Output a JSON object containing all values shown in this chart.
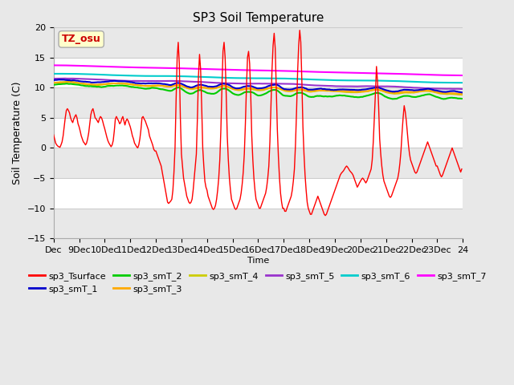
{
  "title": "SP3 Soil Temperature",
  "xlabel": "Time",
  "ylabel": "Soil Temperature (C)",
  "ylim": [
    -15,
    20
  ],
  "xlim": [
    0,
    384
  ],
  "xtick_labels": [
    "Dec",
    "9Dec",
    "10Dec",
    "11Dec",
    "12Dec",
    "13Dec",
    "14Dec",
    "15Dec",
    "16Dec",
    "17Dec",
    "18Dec",
    "19Dec",
    "20Dec",
    "21Dec",
    "22Dec",
    "23Dec",
    "24"
  ],
  "annotation_text": "TZ_osu",
  "annotation_color": "#cc0000",
  "annotation_bg": "#ffffcc",
  "annotation_border": "#aaaaaa",
  "legend_items": [
    {
      "label": "sp3_Tsurface",
      "color": "#ff0000"
    },
    {
      "label": "sp3_smT_1",
      "color": "#0000cc"
    },
    {
      "label": "sp3_smT_2",
      "color": "#00cc00"
    },
    {
      "label": "sp3_smT_3",
      "color": "#ffaa00"
    },
    {
      "label": "sp3_smT_4",
      "color": "#cccc00"
    },
    {
      "label": "sp3_smT_5",
      "color": "#9933cc"
    },
    {
      "label": "sp3_smT_6",
      "color": "#00cccc"
    },
    {
      "label": "sp3_smT_7",
      "color": "#ff00ff"
    }
  ]
}
